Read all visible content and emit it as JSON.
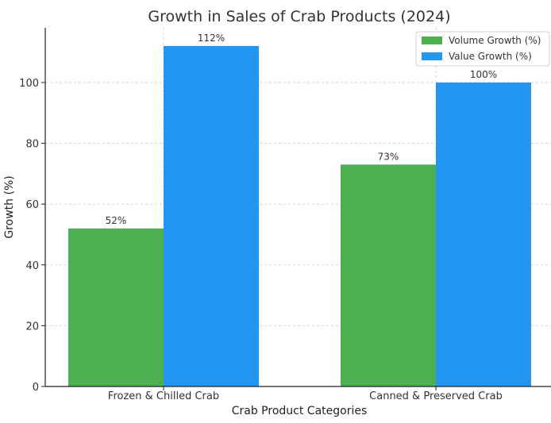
{
  "chart_data": {
    "type": "bar",
    "title": "Growth in Sales of Crab Products (2024)",
    "xlabel": "Crab Product Categories",
    "ylabel": "Growth (%)",
    "categories": [
      "Frozen & Chilled Crab",
      "Canned & Preserved Crab"
    ],
    "series": [
      {
        "name": "Volume Growth (%)",
        "values": [
          52,
          73
        ],
        "labels": [
          "52%",
          "73%"
        ],
        "color": "#4caf50"
      },
      {
        "name": "Value Growth (%)",
        "values": [
          112,
          100
        ],
        "labels": [
          "112%",
          "100%"
        ],
        "color": "#2196f3"
      }
    ],
    "ylim": [
      0,
      118
    ],
    "yticks": [
      0,
      20,
      40,
      60,
      80,
      100
    ],
    "grid": true,
    "legend_position": "top-right"
  }
}
